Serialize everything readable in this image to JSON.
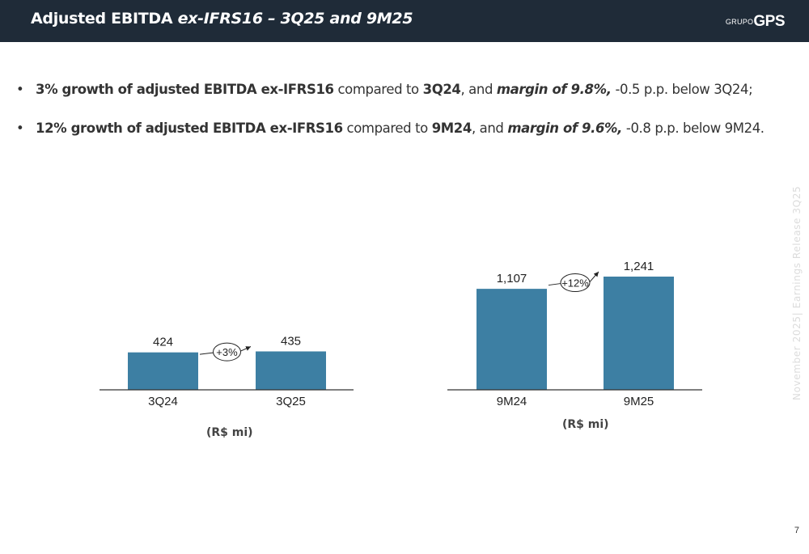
{
  "header": {
    "title_plain": "Adjusted EBITDA ",
    "title_italic": "ex-IFRS16 – 3Q25 and 9M25",
    "logo_prefix": "GRUPO",
    "logo_main": "GPS"
  },
  "bullets": [
    {
      "b1": "3% growth of adjusted EBITDA ex-IFRS16",
      "t1": " compared to ",
      "b2": "3Q24",
      "t2": ", and  ",
      "bi": "margin of 9.8%,",
      "t3": " -0.5 p.p. below 3Q24;"
    },
    {
      "b1": "12% growth of adjusted EBITDA ex-IFRS16",
      "t1": " compared to ",
      "b2": "9M24",
      "t2": ", and  ",
      "bi": "margin of 9.6%,",
      "t3": " -0.8 p.p. below 9M24."
    }
  ],
  "side_text": "November 2025| Earnings Release 3Q25",
  "page_number": "7",
  "chart_data": [
    {
      "type": "bar",
      "categories": [
        "3Q24",
        "3Q25"
      ],
      "values": [
        424,
        435
      ],
      "value_labels": [
        "424",
        "435"
      ],
      "growth_label": "+3%",
      "unit_label": "(R$ mi)",
      "color": "#3d7fa3"
    },
    {
      "type": "bar",
      "categories": [
        "9M24",
        "9M25"
      ],
      "values": [
        1107,
        1241
      ],
      "value_labels": [
        "1,107",
        "1,241"
      ],
      "growth_label": "+12%",
      "unit_label": "(R$ mi)",
      "color": "#3d7fa3"
    }
  ]
}
